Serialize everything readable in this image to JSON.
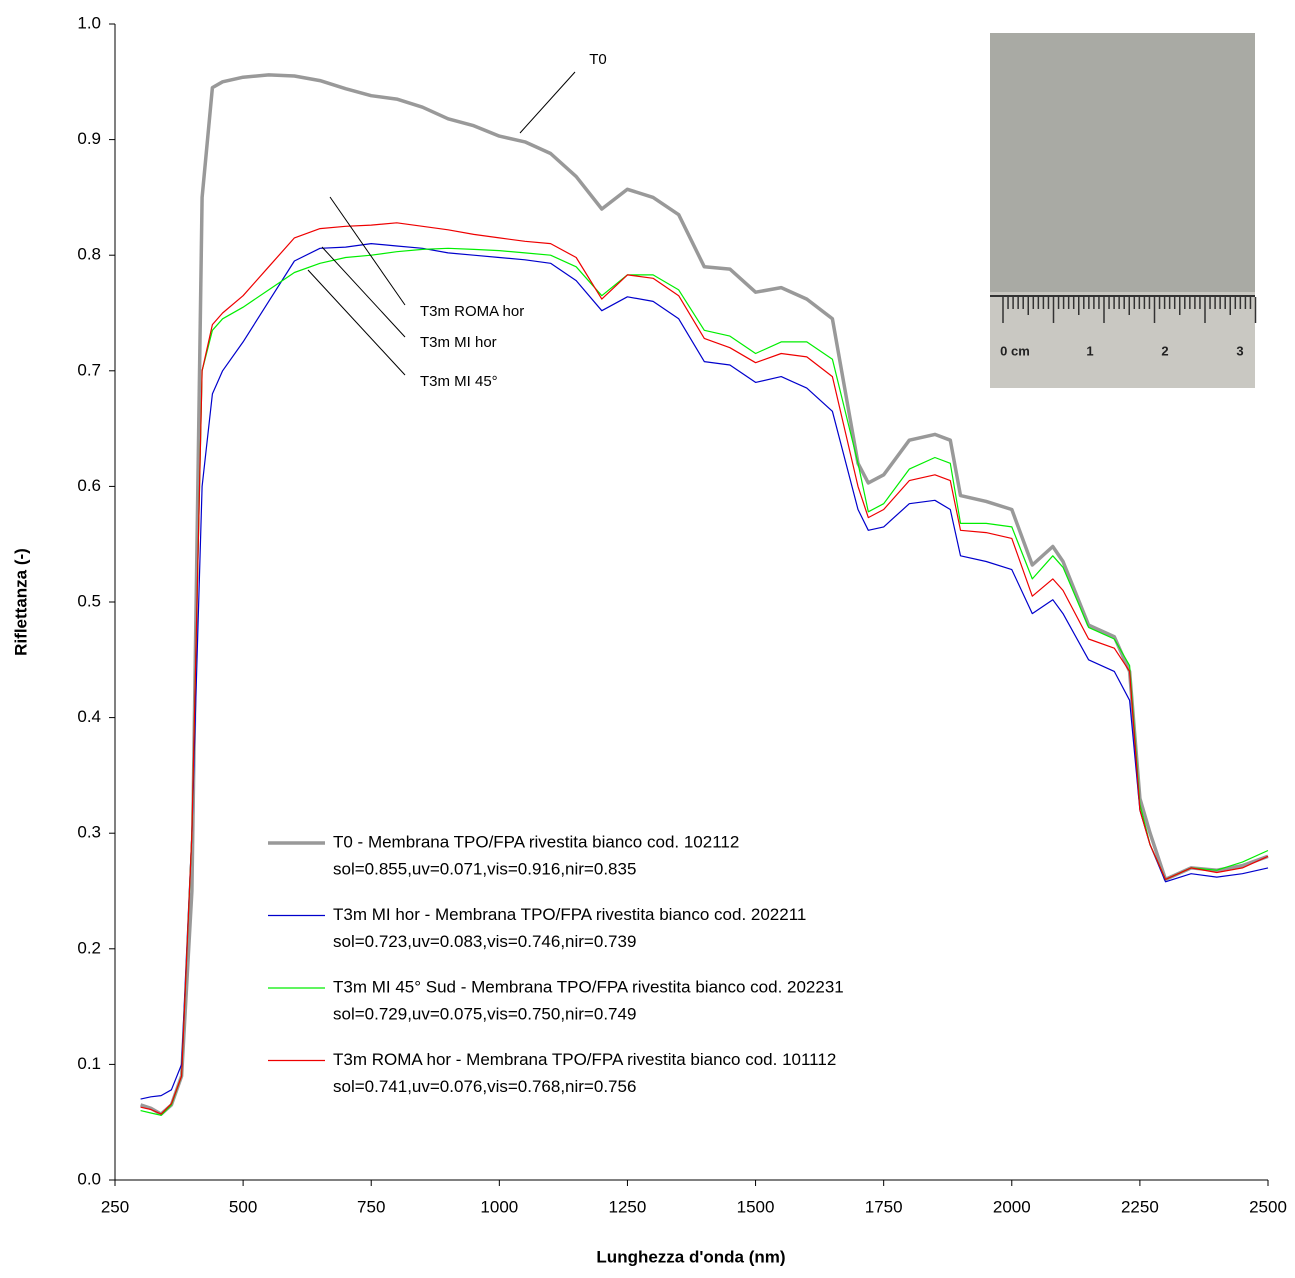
{
  "chart_data": {
    "type": "line",
    "x_label": "Lunghezza d'onda (nm)",
    "y_label": "Riflettanza (-)",
    "xlim": [
      250,
      2500
    ],
    "xticks": [
      250,
      500,
      750,
      1000,
      1250,
      1500,
      1750,
      2000,
      2250,
      2500
    ],
    "ylim": [
      0,
      1
    ],
    "yticks": [
      {
        "value": 0,
        "label": "0.0"
      },
      0.1,
      0.2,
      0.3,
      0.4,
      0.5,
      0.6,
      0.7,
      0.8,
      0.9,
      {
        "value": 1,
        "label": "1.0"
      }
    ],
    "grid": false,
    "x": [
      300,
      320,
      340,
      360,
      380,
      400,
      420,
      440,
      460,
      500,
      550,
      600,
      650,
      700,
      750,
      800,
      850,
      900,
      950,
      1000,
      1050,
      1100,
      1150,
      1200,
      1250,
      1300,
      1350,
      1400,
      1450,
      1500,
      1550,
      1600,
      1650,
      1700,
      1720,
      1750,
      1800,
      1850,
      1880,
      1900,
      1950,
      2000,
      2040,
      2080,
      2100,
      2150,
      2200,
      2230,
      2250,
      2270,
      2300,
      2350,
      2400,
      2450,
      2500
    ],
    "series": [
      {
        "name": "T0 - Membrana TPO/FPA rivestita bianco cod. 102112",
        "legend_detail": "sol=0.855,uv=0.071,vis=0.916,nir=0.835",
        "color": "#999999",
        "width": 3.5,
        "values": [
          0.065,
          0.062,
          0.057,
          0.065,
          0.09,
          0.25,
          0.85,
          0.945,
          0.95,
          0.954,
          0.956,
          0.955,
          0.951,
          0.944,
          0.938,
          0.935,
          0.928,
          0.918,
          0.912,
          0.903,
          0.898,
          0.888,
          0.868,
          0.84,
          0.857,
          0.85,
          0.835,
          0.79,
          0.788,
          0.768,
          0.772,
          0.762,
          0.745,
          0.62,
          0.603,
          0.61,
          0.64,
          0.645,
          0.64,
          0.592,
          0.587,
          0.58,
          0.532,
          0.548,
          0.535,
          0.48,
          0.47,
          0.44,
          0.33,
          0.3,
          0.26,
          0.27,
          0.268,
          0.272,
          0.28
        ]
      },
      {
        "name": "T3m MI hor - Membrana TPO/FPA rivestita bianco cod. 202211",
        "legend_detail": "sol=0.723,uv=0.083,vis=0.746,nir=0.739",
        "color": "#0000cc",
        "width": 1.2,
        "values": [
          0.07,
          0.072,
          0.073,
          0.078,
          0.1,
          0.3,
          0.6,
          0.68,
          0.7,
          0.725,
          0.76,
          0.795,
          0.806,
          0.807,
          0.81,
          0.808,
          0.806,
          0.802,
          0.8,
          0.798,
          0.796,
          0.793,
          0.778,
          0.752,
          0.764,
          0.76,
          0.745,
          0.708,
          0.705,
          0.69,
          0.695,
          0.685,
          0.665,
          0.58,
          0.562,
          0.565,
          0.585,
          0.588,
          0.58,
          0.54,
          0.535,
          0.528,
          0.49,
          0.502,
          0.49,
          0.45,
          0.44,
          0.415,
          0.32,
          0.29,
          0.258,
          0.265,
          0.262,
          0.265,
          0.27
        ]
      },
      {
        "name": "T3m MI 45° Sud - Membrana TPO/FPA rivestita bianco cod. 202231",
        "legend_detail": "sol=0.729,uv=0.075,vis=0.750,nir=0.749",
        "color": "#00ee00",
        "width": 1.2,
        "values": [
          0.06,
          0.058,
          0.056,
          0.065,
          0.09,
          0.3,
          0.7,
          0.735,
          0.745,
          0.755,
          0.77,
          0.785,
          0.793,
          0.798,
          0.8,
          0.803,
          0.805,
          0.806,
          0.805,
          0.804,
          0.802,
          0.8,
          0.79,
          0.765,
          0.783,
          0.783,
          0.77,
          0.735,
          0.73,
          0.715,
          0.725,
          0.725,
          0.71,
          0.62,
          0.578,
          0.585,
          0.615,
          0.625,
          0.62,
          0.568,
          0.568,
          0.565,
          0.52,
          0.54,
          0.53,
          0.478,
          0.468,
          0.445,
          0.325,
          0.29,
          0.26,
          0.27,
          0.268,
          0.275,
          0.285
        ]
      },
      {
        "name": "T3m ROMA hor - Membrana TPO/FPA rivestita bianco cod. 101112",
        "legend_detail": "sol=0.741,uv=0.076,vis=0.768,nir=0.756",
        "color": "#ee0000",
        "width": 1.2,
        "values": [
          0.063,
          0.061,
          0.057,
          0.066,
          0.09,
          0.3,
          0.7,
          0.74,
          0.75,
          0.765,
          0.79,
          0.815,
          0.823,
          0.825,
          0.826,
          0.828,
          0.825,
          0.822,
          0.818,
          0.815,
          0.812,
          0.81,
          0.798,
          0.762,
          0.783,
          0.78,
          0.765,
          0.728,
          0.72,
          0.707,
          0.715,
          0.712,
          0.695,
          0.6,
          0.573,
          0.58,
          0.605,
          0.61,
          0.605,
          0.562,
          0.56,
          0.555,
          0.505,
          0.52,
          0.51,
          0.468,
          0.46,
          0.44,
          0.32,
          0.29,
          0.26,
          0.27,
          0.266,
          0.27,
          0.28
        ]
      }
    ],
    "annotations": [
      "T0",
      "T3m ROMA hor",
      "T3m MI hor",
      "T3m MI 45°"
    ],
    "inset_labels": [
      "0 cm",
      "1",
      "2",
      "3"
    ]
  }
}
